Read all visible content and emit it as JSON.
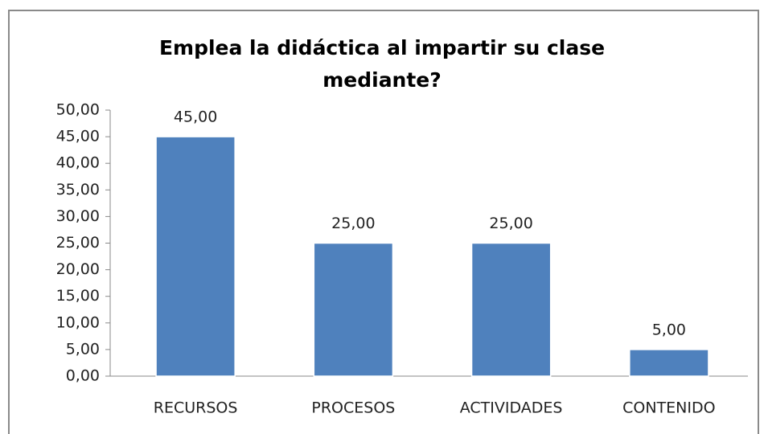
{
  "chart_data": {
    "type": "bar",
    "title": "Emplea la didáctica al impartir su clase mediante?",
    "categories": [
      "RECURSOS",
      "PROCESOS",
      "ACTIVIDADES",
      "CONTENIDO"
    ],
    "values": [
      45,
      25,
      25,
      5
    ],
    "value_labels": [
      "45,00",
      "25,00",
      "25,00",
      "5,00"
    ],
    "color": "#4f81bd",
    "ylim": [
      0,
      50
    ],
    "yticks": [
      {
        "value": 0,
        "label": "0,00"
      },
      {
        "value": 5,
        "label": "5,00"
      },
      {
        "value": 10,
        "label": "10,00"
      },
      {
        "value": 15,
        "label": "15,00"
      },
      {
        "value": 20,
        "label": "20,00"
      },
      {
        "value": 25,
        "label": "25,00"
      },
      {
        "value": 30,
        "label": "30,00"
      },
      {
        "value": 35,
        "label": "35,00"
      },
      {
        "value": 40,
        "label": "40,00"
      },
      {
        "value": 45,
        "label": "45,00"
      },
      {
        "value": 50,
        "label": "50,00"
      }
    ],
    "grid": false
  }
}
